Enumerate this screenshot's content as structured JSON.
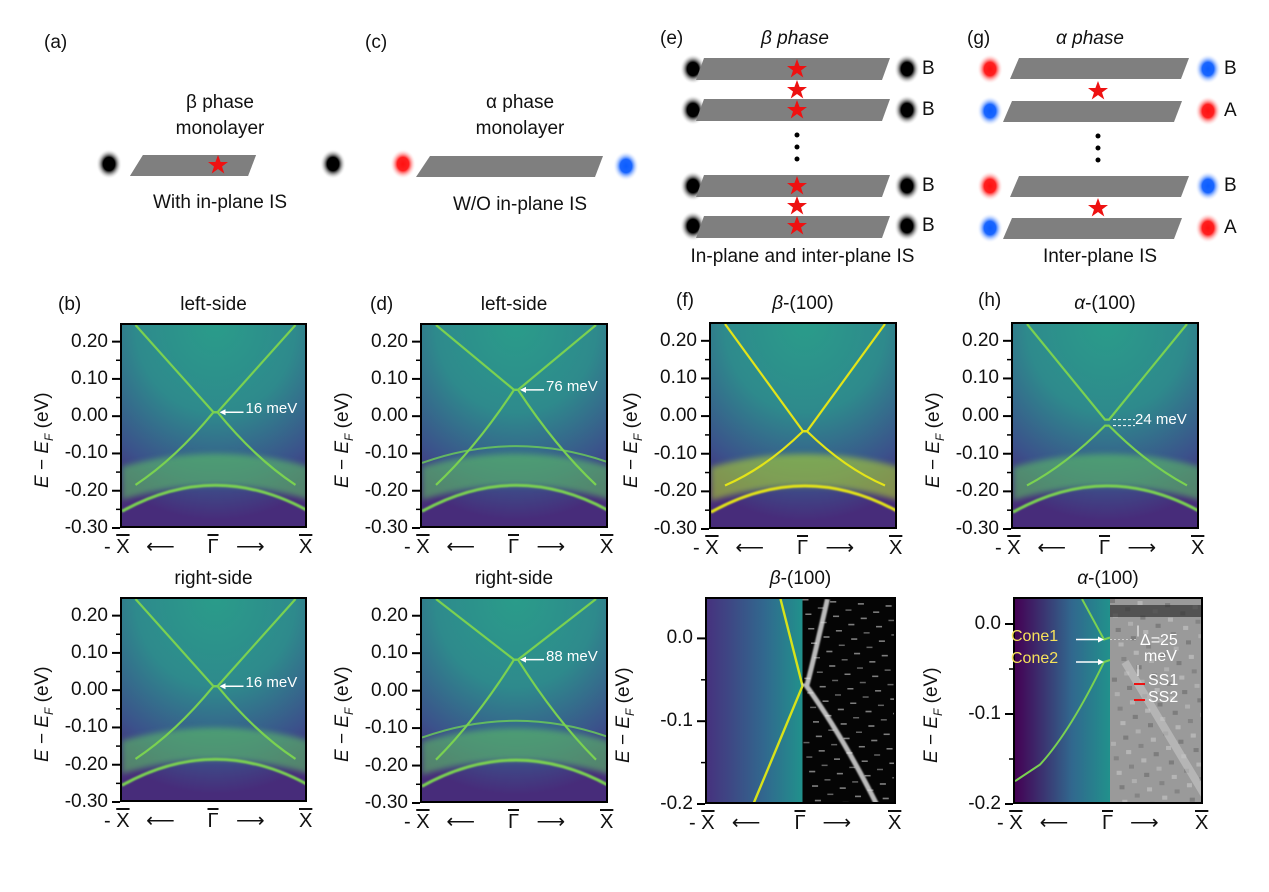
{
  "figure": {
    "panels": {
      "a": {
        "label": "(a)",
        "title_line1": "β  phase",
        "title_line2": "monolayer",
        "caption": "With in-plane IS"
      },
      "c": {
        "label": "(c)",
        "title_line1": "α phase",
        "title_line2": "monolayer",
        "caption": "W/O in-plane IS"
      },
      "e": {
        "label": "(e)",
        "title": "β  phase",
        "layer_labels": [
          "B",
          "B",
          "B",
          "B"
        ],
        "caption": "In-plane and inter-plane IS"
      },
      "g": {
        "label": "(g)",
        "title": "α phase",
        "layer_labels": [
          "B",
          "A",
          "B",
          "A"
        ],
        "caption": "Inter-plane IS"
      },
      "b": {
        "label": "(b)"
      },
      "d": {
        "label": "(d)"
      },
      "f": {
        "label": "(f)"
      },
      "h": {
        "label": "(h)"
      }
    },
    "colors": {
      "layer_gray": "#7f7f7f",
      "star_red": "#ee1111",
      "atom_black": "#000000",
      "atom_red": "#ff1a1a",
      "atom_blue": "#1a66ff",
      "viridis_dark": "#440154",
      "viridis_mid": "#21918c",
      "viridis_bright": "#fde725",
      "cone_label": "#f6e25b"
    },
    "axis": {
      "ylabel_prefix": "E − E",
      "ylabel_sub": "F",
      "ylabel_suffix": " (eV)",
      "x_left": "- X",
      "x_mid": "Γ",
      "x_right": "X",
      "arrow_left": "⟵",
      "arrow_right": "⟶"
    }
  },
  "chart_data": [
    {
      "id": "b-top",
      "type": "heatmap",
      "title": "left-side",
      "panel": "(b)",
      "ylabel": "E − E_F (eV)",
      "ylim": [
        -0.3,
        0.25
      ],
      "yticks": [
        "0.20",
        "0.10",
        "0.00",
        "-0.10",
        "-0.20",
        "-0.30"
      ],
      "xticks": [
        "- X̄",
        "Γ̄",
        "X̄"
      ],
      "dirac_point_eV": 0.016,
      "annotation": "16 meV",
      "gap": false,
      "ghost_band": false
    },
    {
      "id": "b-bottom",
      "type": "heatmap",
      "title": "right-side",
      "panel": "(b)",
      "ylabel": "E − E_F (eV)",
      "ylim": [
        -0.3,
        0.25
      ],
      "yticks": [
        "0.20",
        "0.10",
        "0.00",
        "-0.10",
        "-0.20",
        "-0.30"
      ],
      "xticks": [
        "- X̄",
        "Γ̄",
        "X̄"
      ],
      "dirac_point_eV": 0.016,
      "annotation": "16 meV",
      "gap": false,
      "ghost_band": false
    },
    {
      "id": "d-top",
      "type": "heatmap",
      "title": "left-side",
      "panel": "(d)",
      "ylabel": "E − E_F (eV)",
      "ylim": [
        -0.3,
        0.25
      ],
      "yticks": [
        "0.20",
        "0.10",
        "0.00",
        "-0.10",
        "-0.20",
        "-0.30"
      ],
      "xticks": [
        "- X̄",
        "Γ̄",
        "X̄"
      ],
      "dirac_point_eV": 0.076,
      "annotation": "76 meV",
      "gap": false,
      "ghost_band": true
    },
    {
      "id": "d-bottom",
      "type": "heatmap",
      "title": "right-side",
      "panel": "(d)",
      "ylabel": "E − E_F (eV)",
      "ylim": [
        -0.3,
        0.25
      ],
      "yticks": [
        "0.20",
        "0.10",
        "0.00",
        "-0.10",
        "-0.20",
        "-0.30"
      ],
      "xticks": [
        "- X̄",
        "Γ̄",
        "X̄"
      ],
      "dirac_point_eV": 0.088,
      "annotation": "88 meV",
      "gap": false,
      "ghost_band": true
    },
    {
      "id": "f-top",
      "type": "heatmap",
      "title": "β-(100)",
      "panel": "(f)",
      "ylabel": "E − E_F (eV)",
      "ylim": [
        -0.3,
        0.25
      ],
      "yticks": [
        "0.20",
        "0.10",
        "0.00",
        "-0.10",
        "-0.20",
        "-0.30"
      ],
      "xticks": [
        "- X̄",
        "Γ̄",
        "X̄"
      ],
      "dirac_point_eV": -0.035,
      "annotation": "",
      "gap": false,
      "ghost_band": false
    },
    {
      "id": "h-top",
      "type": "heatmap",
      "title": "α-(100)",
      "panel": "(h)",
      "ylabel": "E − E_F (eV)",
      "ylim": [
        -0.3,
        0.25
      ],
      "yticks": [
        "0.20",
        "0.10",
        "0.00",
        "-0.10",
        "-0.20",
        "-0.30"
      ],
      "xticks": [
        "- X̄",
        "Γ̄",
        "X̄"
      ],
      "dirac_point_eV": -0.012,
      "annotation": "24 meV",
      "gap": true,
      "gap_meV": 24,
      "ghost_band": false
    },
    {
      "id": "f-bottom",
      "type": "heatmap",
      "title": "β-(100)",
      "panel": "(f)",
      "ylabel": "E − E_F (eV)",
      "ylim": [
        -0.2,
        0.05
      ],
      "yticks": [
        "0.0",
        "-0.1",
        "-0.2"
      ],
      "xticks": [
        "- X̄",
        "Γ̄",
        "X̄"
      ],
      "dirac_point_eV": -0.055,
      "left_half": "calculated",
      "right_half": "experimental (grayscale)"
    },
    {
      "id": "h-bottom",
      "type": "heatmap",
      "title": "α-(100)",
      "panel": "(h)",
      "ylabel": "E − E_F (eV)",
      "ylim": [
        -0.2,
        0.03
      ],
      "yticks": [
        "0.0",
        "-0.1",
        "-0.2"
      ],
      "xticks": [
        "- X̄",
        "Γ̄",
        "X̄"
      ],
      "cone1_eV": -0.015,
      "cone2_eV": -0.04,
      "labels": {
        "cone1": "Cone1",
        "cone2": "Cone2",
        "delta": "Δ=25",
        "delta_unit": "meV",
        "ss1": "SS1",
        "ss2": "SS2"
      },
      "left_half": "calculated",
      "right_half": "experimental (grayscale)"
    }
  ]
}
